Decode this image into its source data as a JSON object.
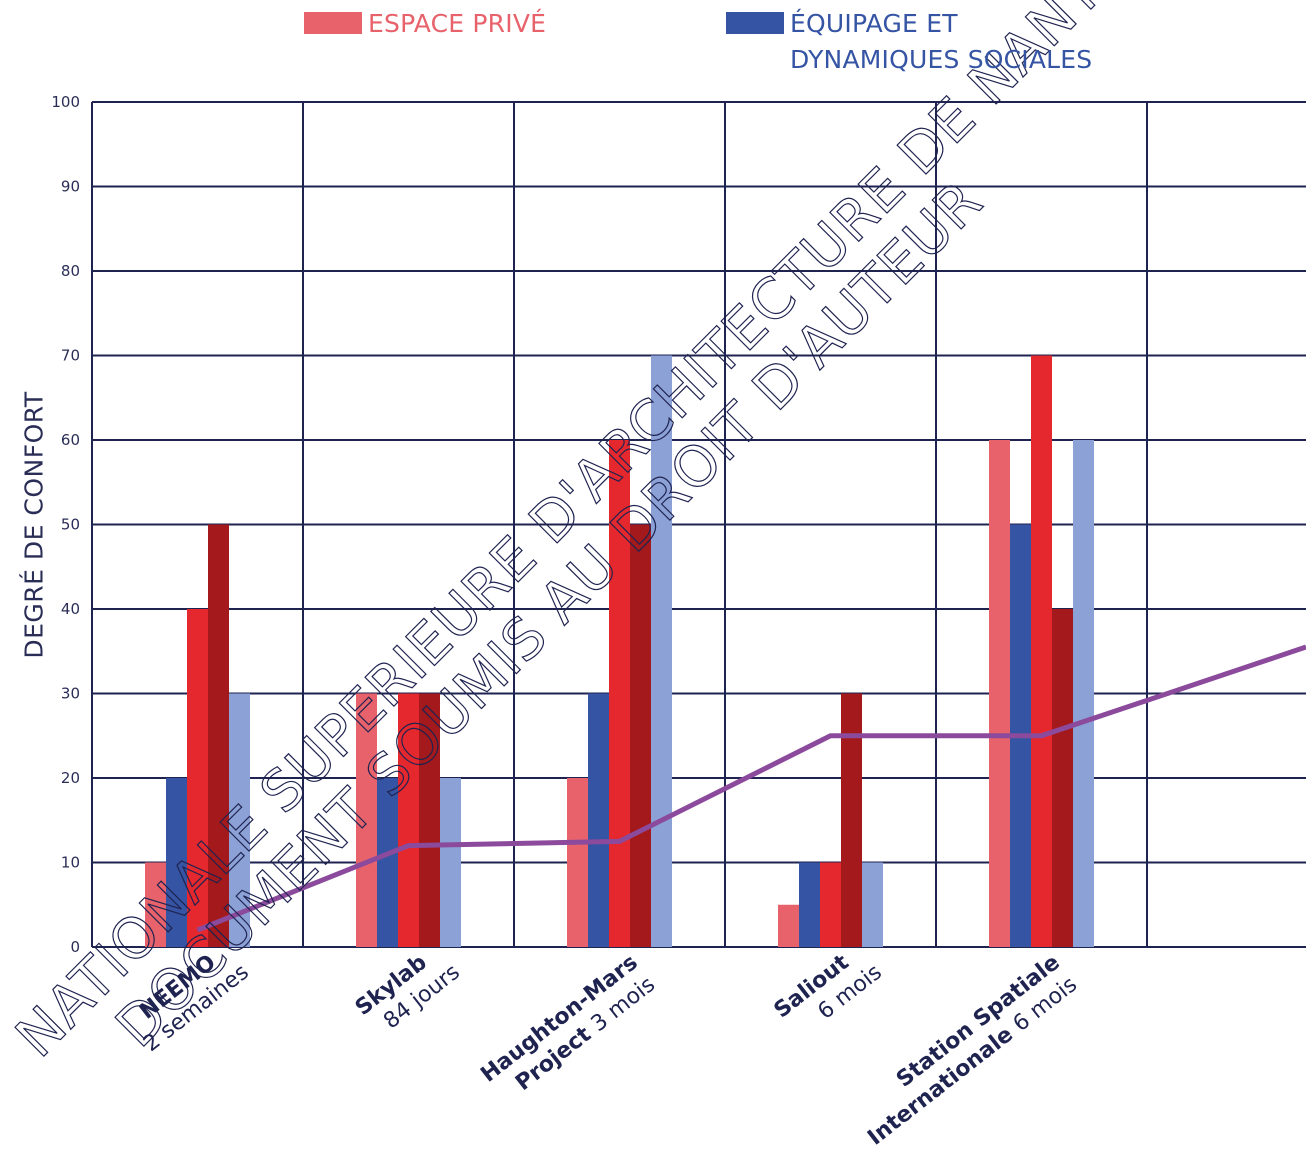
{
  "chart_data": {
    "type": "bar",
    "ylabel": "DEGRÉ DE CONFORT",
    "ylim": [
      0,
      100
    ],
    "yticks": [
      0,
      10,
      20,
      30,
      40,
      50,
      60,
      70,
      80,
      90,
      100
    ],
    "grid": true,
    "legend": [
      {
        "label_line1": "ESPACE PRIVÉ",
        "label_line2": "",
        "color": "#e8626b"
      },
      {
        "label_line1": "ÉQUIPAGE ET",
        "label_line2": "DYNAMIQUES SOCIALES",
        "color": "#3554a4"
      }
    ],
    "categories": [
      {
        "name": "NEEMO",
        "duration": "2 semaines"
      },
      {
        "name": "Skylab",
        "duration": "84 jours"
      },
      {
        "name": "Haughton-Mars Project",
        "name_line1": "Haughton-Mars",
        "name_line2": "Project",
        "duration": "3 mois"
      },
      {
        "name": "Saliout",
        "duration": "6 mois"
      },
      {
        "name": "Station Spatiale Internationale",
        "name_line1": "Station Spatiale",
        "name_line2": "Internationale",
        "duration": "6 mois"
      }
    ],
    "series": [
      {
        "name": "ESPACE PRIVÉ",
        "color": "#e8626b",
        "values": [
          10,
          30,
          20,
          5,
          60
        ]
      },
      {
        "name": "ÉQUIPAGE ET DYNAMIQUES SOCIALES",
        "color": "#3554a4",
        "values": [
          20,
          20,
          30,
          10,
          50
        ]
      },
      {
        "color": "#e5282e",
        "values": [
          40,
          30,
          60,
          10,
          70
        ]
      },
      {
        "color": "#a3191c",
        "values": [
          50,
          30,
          50,
          30,
          40
        ]
      },
      {
        "color": "#8ca1d6",
        "values": [
          30,
          20,
          70,
          10,
          60
        ]
      }
    ],
    "trend_line": {
      "color": "#8b4a9c",
      "points": [
        [
          0,
          2
        ],
        [
          1,
          12
        ],
        [
          2,
          12.5
        ],
        [
          3,
          25
        ],
        [
          4,
          25
        ],
        [
          5.6,
          35.5
        ]
      ]
    },
    "watermark": [
      "NATIONALE SUPERIEURE D'ARCHITECTURE DE NANTES",
      "DOCUMENT SOUMIS AU DROIT D'AUTEUR"
    ]
  }
}
